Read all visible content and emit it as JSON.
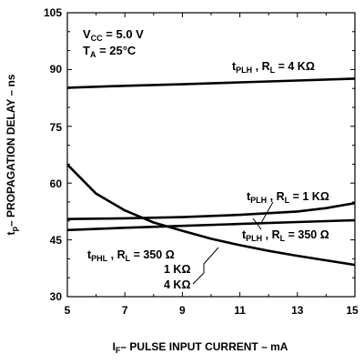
{
  "chart_data": {
    "type": "line",
    "xlabel_main": "I",
    "xlabel_sub": "F",
    "xlabel_rest": "– PULSE INPUT CURRENT – mA",
    "ylabel_main": "t",
    "ylabel_sub": "p",
    "ylabel_rest": "– PROPAGATION DELAY – ns",
    "xlim": [
      5,
      15
    ],
    "ylim": [
      30,
      105
    ],
    "xticks": [
      "5",
      "7",
      "9",
      "11",
      "13",
      "15"
    ],
    "yticks": [
      "30",
      "45",
      "60",
      "75",
      "90",
      "105"
    ],
    "conditions": {
      "vcc_main": "V",
      "vcc_sub": "CC",
      "vcc_rest": " = 5.0 V",
      "ta_main": "T",
      "ta_sub": "A",
      "ta_rest": " = 25°C"
    },
    "series": [
      {
        "name": "tPLH, RL = 4 KΩ",
        "x": [
          5,
          7,
          9,
          11,
          13,
          15
        ],
        "y": [
          85.2,
          85.7,
          86.1,
          86.6,
          87.1,
          87.6
        ]
      },
      {
        "name": "tPLH, RL = 1 KΩ",
        "x": [
          5,
          7,
          9,
          11,
          13,
          14,
          15
        ],
        "y": [
          50.5,
          50.7,
          51.0,
          51.6,
          52.5,
          53.4,
          54.7
        ]
      },
      {
        "name": "tPLH, RL = 350 Ω",
        "x": [
          5,
          7,
          9,
          11,
          13,
          15
        ],
        "y": [
          47.6,
          48.2,
          48.7,
          49.2,
          49.7,
          50.2
        ]
      },
      {
        "name": "tPHL, RL = 350 Ω, 1 KΩ, 4 KΩ",
        "x": [
          5,
          6,
          7,
          8,
          9,
          10,
          11,
          12,
          13,
          14,
          15
        ],
        "y": [
          64.9,
          57.2,
          52.8,
          49.6,
          47.4,
          45.3,
          43.6,
          42.1,
          40.8,
          39.6,
          38.4
        ]
      }
    ],
    "annotations": {
      "plh4k": {
        "t": "t",
        "sub": "PLH",
        "mid": " , R",
        "rsub": "L",
        "val": " = 4 KΩ"
      },
      "plh1k": {
        "t": "t",
        "sub": "PLH",
        "mid": " , R",
        "rsub": "L",
        "val": " = 1 KΩ"
      },
      "plh350": {
        "t": "t",
        "sub": "PLH",
        "mid": " , R",
        "rsub": "L",
        "val": " = 350 Ω"
      },
      "phl": {
        "t": "t",
        "sub": "PHL",
        "mid": " , R",
        "rsub": "L",
        "val": " = 350 Ω"
      },
      "phl_1k": "1 KΩ",
      "phl_4k": "4 KΩ"
    }
  }
}
